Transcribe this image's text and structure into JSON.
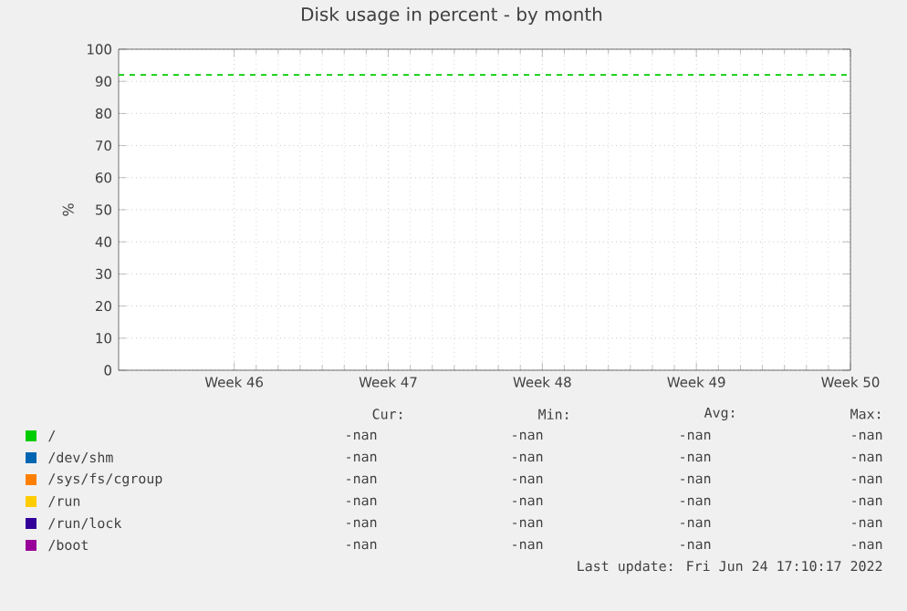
{
  "chart_data": {
    "type": "line",
    "title": "Disk usage in percent - by month",
    "ylabel": "%",
    "categories": [
      "Week 46",
      "Week 47",
      "Week 48",
      "Week 49",
      "Week 50"
    ],
    "ylim": [
      0,
      100
    ],
    "yticks": [
      0,
      10,
      20,
      30,
      40,
      50,
      60,
      70,
      80,
      90,
      100
    ],
    "grid": true,
    "legend": "bottom",
    "series": [
      {
        "name": "/",
        "color": "#00cc00",
        "values": [
          null,
          null,
          null,
          null,
          null
        ]
      },
      {
        "name": "/dev/shm",
        "color": "#0066b3",
        "values": [
          null,
          null,
          null,
          null,
          null
        ]
      },
      {
        "name": "/sys/fs/cgroup",
        "color": "#ff8000",
        "values": [
          null,
          null,
          null,
          null,
          null
        ]
      },
      {
        "name": "/run",
        "color": "#ffcc00",
        "values": [
          null,
          null,
          null,
          null,
          null
        ]
      },
      {
        "name": "/run/lock",
        "color": "#330099",
        "values": [
          null,
          null,
          null,
          null,
          null
        ]
      },
      {
        "name": "/boot",
        "color": "#990099",
        "values": [
          null,
          null,
          null,
          null,
          null
        ]
      }
    ],
    "ref_lines": [
      {
        "axis": "y",
        "value": 92,
        "color": "#00cc00",
        "line_style": "dashed"
      }
    ],
    "annotations": [
      "Cur:",
      "Min:",
      "Avg:",
      "Max:",
      "-nan",
      "-nan",
      "-nan",
      "-nan",
      "-nan",
      "-nan",
      "-nan",
      "-nan",
      "-nan",
      "-nan",
      "-nan",
      "-nan",
      "-nan",
      "-nan",
      "-nan",
      "-nan",
      "-nan",
      "-nan",
      "-nan",
      "-nan",
      "-nan",
      "-nan",
      "-nan",
      "-nan",
      "Last update: Fri Jun 24 17:10:17 2022"
    ]
  }
}
